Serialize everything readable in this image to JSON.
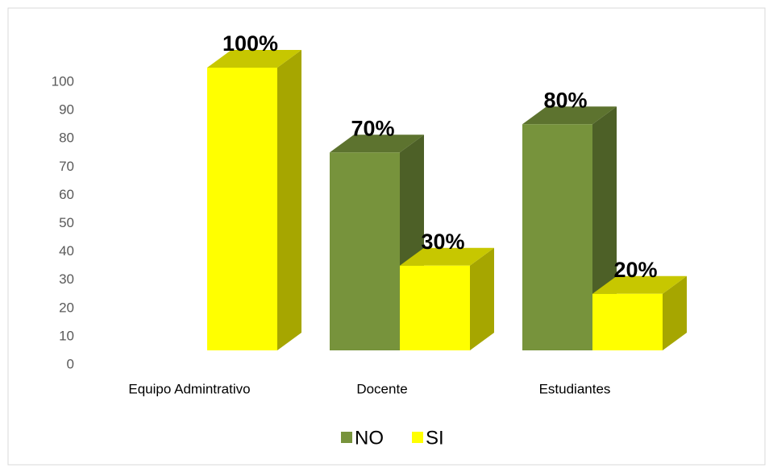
{
  "chart_data": {
    "type": "bar3d",
    "categories": [
      "Equipo Admintrativo",
      "Docente",
      "Estudiantes"
    ],
    "series": [
      {
        "name": "NO",
        "color": "#77933c",
        "values": [
          null,
          70,
          80
        ],
        "value_labels": [
          null,
          "70%",
          "80%"
        ]
      },
      {
        "name": "SI",
        "color": "#ffff00",
        "values": [
          100,
          30,
          20
        ],
        "value_labels": [
          "100%",
          "30%",
          "20%"
        ]
      }
    ],
    "ylim": [
      0,
      100
    ],
    "yticks": [
      0,
      10,
      20,
      30,
      40,
      50,
      60,
      70,
      80,
      90,
      100
    ],
    "grid": false,
    "legend": "bottom"
  }
}
